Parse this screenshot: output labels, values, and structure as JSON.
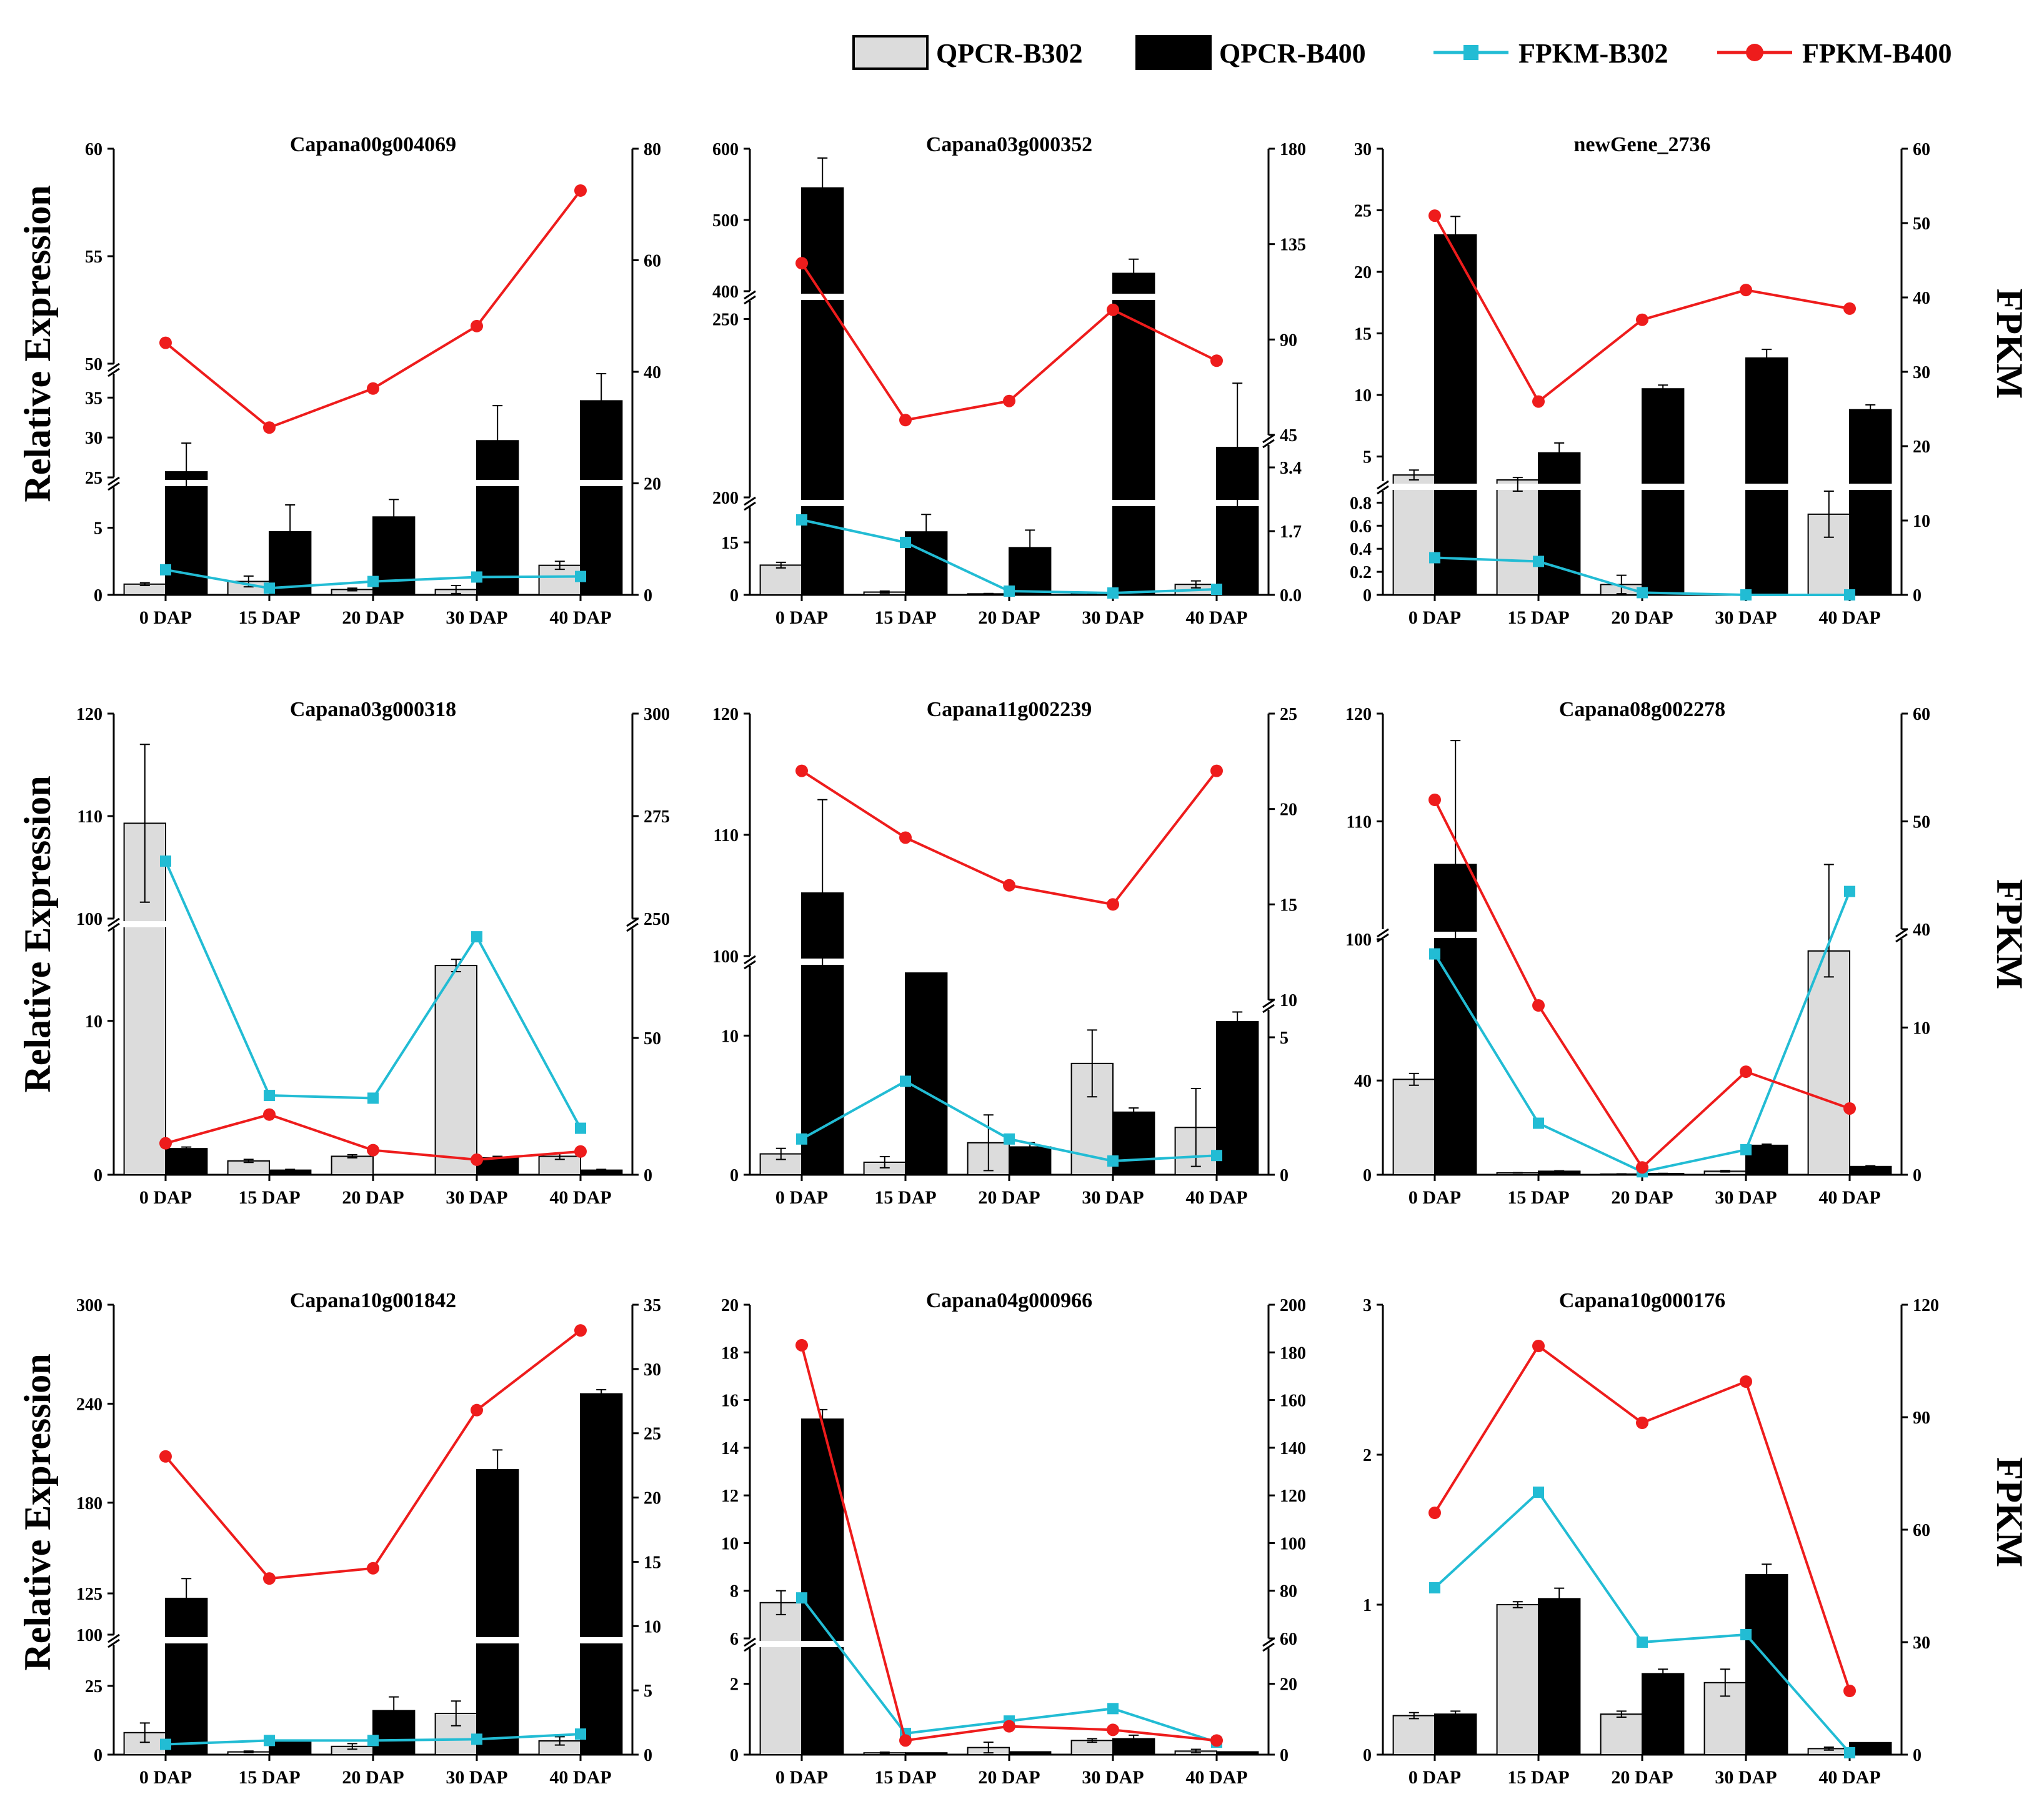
{
  "legend": {
    "items": [
      {
        "label": "QPCR-B302",
        "kind": "bar",
        "color": "#dcdcdc"
      },
      {
        "label": "QPCR-B400",
        "kind": "bar",
        "color": "#000000"
      },
      {
        "label": "FPKM-B302",
        "kind": "line",
        "color": "#22bcd4"
      },
      {
        "label": "FPKM-B400",
        "kind": "line",
        "color": "#ee1c1c"
      }
    ]
  },
  "axis_labels": {
    "left": "Relative Expression",
    "right": "FPKM"
  },
  "chart_data": [
    {
      "type": "bar+line",
      "title": "Capana00g004069",
      "categories": [
        "0 DAP",
        "15 DAP",
        "20 DAP",
        "30 DAP",
        "40 DAP"
      ],
      "left_axis": {
        "segments": [
          [
            0,
            8
          ],
          [
            25,
            38
          ],
          [
            50,
            60
          ]
        ],
        "ticks": [
          [
            0,
            5
          ],
          [
            25,
            30,
            35
          ],
          [
            50,
            55,
            60
          ]
        ]
      },
      "right_axis": {
        "segments": [
          [
            0,
            80
          ]
        ],
        "ticks": [
          [
            0,
            20,
            40,
            60,
            80
          ]
        ]
      },
      "qpcr_b302": [
        0.8,
        1.0,
        0.4,
        0.4,
        2.2
      ],
      "qpcr_b302_err": [
        0.1,
        0.4,
        0.1,
        0.3,
        0.3
      ],
      "qpcr_b400": [
        25.7,
        4.7,
        5.8,
        29.6,
        34.6
      ],
      "qpcr_b400_err": [
        3.6,
        2.0,
        1.3,
        4.4,
        3.9
      ],
      "fpkm_b302": [
        4.5,
        1.2,
        2.4,
        3.2,
        3.3
      ],
      "fpkm_b400": [
        45.2,
        30.0,
        37.0,
        48.2,
        72.5
      ]
    },
    {
      "type": "bar+line",
      "title": "Capana03g000352",
      "categories": [
        "0 DAP",
        "15 DAP",
        "20 DAP",
        "30 DAP",
        "40 DAP"
      ],
      "left_axis": {
        "segments": [
          [
            0,
            25
          ],
          [
            200,
            255
          ],
          [
            400,
            600
          ]
        ],
        "ticks": [
          [
            0,
            15
          ],
          [
            200,
            250
          ],
          [
            400,
            500,
            600
          ]
        ]
      },
      "right_axis": {
        "segments": [
          [
            0,
            4
          ],
          [
            45,
            180
          ]
        ],
        "ticks": [
          [
            0.0,
            1.7,
            3.4
          ],
          [
            45,
            90,
            135,
            180
          ]
        ]
      },
      "qpcr_b302": [
        8.5,
        0.8,
        0.3,
        0.4,
        3.0
      ],
      "qpcr_b302_err": [
        0.8,
        0.3,
        0.1,
        0.2,
        1.0
      ],
      "qpcr_b400": [
        545,
        18,
        13.5,
        425,
        214
      ],
      "qpcr_b400_err": [
        42,
        5,
        5,
        20,
        18
      ],
      "fpkm_b302": [
        2.0,
        1.4,
        0.1,
        0.05,
        0.15
      ],
      "fpkm_b400": [
        126,
        52,
        61,
        104,
        80
      ]
    },
    {
      "type": "bar+line",
      "title": "newGene_2736",
      "categories": [
        "0 DAP",
        "15 DAP",
        "20 DAP",
        "30 DAP",
        "40 DAP"
      ],
      "left_axis": {
        "segments": [
          [
            0,
            0.9
          ],
          [
            3,
            30
          ]
        ],
        "ticks": [
          [
            0.0,
            0.2,
            0.4,
            0.6,
            0.8
          ],
          [
            5,
            10,
            15,
            20,
            25,
            30
          ]
        ]
      },
      "right_axis": {
        "segments": [
          [
            0,
            60
          ]
        ],
        "ticks": [
          [
            0,
            10,
            20,
            30,
            40,
            50,
            60
          ]
        ]
      },
      "qpcr_b302": [
        3.5,
        3.1,
        0.09,
        0.0,
        0.7
      ],
      "qpcr_b302_err": [
        0.4,
        0.2,
        0.08,
        0.0,
        0.2
      ],
      "qpcr_b400": [
        23.0,
        5.3,
        10.5,
        13.0,
        8.8
      ],
      "qpcr_b400_err": [
        1.5,
        0.8,
        0.3,
        0.7,
        0.4
      ],
      "fpkm_b302": [
        5.0,
        4.5,
        0.3,
        0.0,
        0.0
      ],
      "fpkm_b400": [
        51,
        26,
        37,
        41,
        38.5
      ]
    },
    {
      "type": "bar+line",
      "title": "Capana03g000318",
      "categories": [
        "0 DAP",
        "15 DAP",
        "20 DAP",
        "30 DAP",
        "40 DAP"
      ],
      "left_axis": {
        "segments": [
          [
            0,
            16
          ],
          [
            100,
            120
          ]
        ],
        "ticks": [
          [
            0,
            10
          ],
          [
            100,
            110,
            120
          ]
        ]
      },
      "right_axis": {
        "segments": [
          [
            0,
            90
          ],
          [
            250,
            300
          ]
        ],
        "ticks": [
          [
            0,
            50
          ],
          [
            250,
            275,
            300
          ]
        ]
      },
      "qpcr_b302": [
        109.3,
        0.9,
        1.2,
        13.6,
        1.2
      ],
      "qpcr_b302_err": [
        7.7,
        0.1,
        0.1,
        0.4,
        0.2
      ],
      "qpcr_b400": [
        1.7,
        0.3,
        0.0,
        1.1,
        0.3
      ],
      "qpcr_b400_err": [
        0.1,
        0.05,
        0.0,
        0.1,
        0.05
      ],
      "fpkm_b302": [
        264,
        29,
        28,
        87,
        17
      ],
      "fpkm_b400": [
        11.5,
        22,
        9,
        5.5,
        8.5
      ]
    },
    {
      "type": "bar+line",
      "title": "Capana11g002239",
      "categories": [
        "0 DAP",
        "15 DAP",
        "20 DAP",
        "30 DAP",
        "40 DAP"
      ],
      "left_axis": {
        "segments": [
          [
            0,
            15
          ],
          [
            100,
            120
          ]
        ],
        "ticks": [
          [
            0,
            10
          ],
          [
            100,
            110,
            120
          ]
        ]
      },
      "right_axis": {
        "segments": [
          [
            0,
            6
          ],
          [
            10,
            25
          ]
        ],
        "ticks": [
          [
            0,
            5
          ],
          [
            10,
            15,
            20,
            25
          ]
        ]
      },
      "qpcr_b302": [
        1.5,
        0.9,
        2.3,
        8.0,
        3.4
      ],
      "qpcr_b302_err": [
        0.4,
        0.4,
        2.0,
        2.4,
        2.8
      ],
      "qpcr_b400": [
        105.2,
        14.5,
        2.0,
        4.5,
        11.0
      ],
      "qpcr_b400_err": [
        7.7,
        0.0,
        0.3,
        0.3,
        0.7
      ],
      "fpkm_b302": [
        1.3,
        3.4,
        1.3,
        0.5,
        0.7
      ],
      "fpkm_b400": [
        22.0,
        18.5,
        16.0,
        15.0,
        22.0
      ]
    },
    {
      "type": "bar+line",
      "title": "Capana08g002278",
      "categories": [
        "0 DAP",
        "15 DAP",
        "20 DAP",
        "30 DAP",
        "40 DAP"
      ],
      "left_axis": {
        "segments": [
          [
            0,
            100
          ],
          [
            100,
            120
          ]
        ],
        "ticks": [
          [
            0,
            40
          ],
          [
            100,
            110,
            120
          ]
        ]
      },
      "right_axis": {
        "segments": [
          [
            0,
            16
          ],
          [
            40,
            60
          ]
        ],
        "ticks": [
          [
            0,
            10
          ],
          [
            40,
            50,
            60
          ]
        ]
      },
      "qpcr_b302": [
        40.5,
        0.8,
        0.3,
        1.5,
        95.0
      ],
      "qpcr_b302_err": [
        2.5,
        0.1,
        0.1,
        0.3,
        11.0
      ],
      "qpcr_b400": [
        106.0,
        1.5,
        0.5,
        12.5,
        3.5
      ],
      "qpcr_b400_err": [
        11.5,
        0.2,
        0.1,
        0.5,
        0.3
      ],
      "fpkm_b302": [
        15.0,
        3.5,
        0.2,
        1.7,
        43.5
      ],
      "fpkm_b400": [
        52.0,
        11.5,
        0.5,
        7.0,
        4.5
      ]
    },
    {
      "type": "bar+line",
      "title": "Capana10g001842",
      "categories": [
        "0 DAP",
        "15 DAP",
        "20 DAP",
        "30 DAP",
        "40 DAP"
      ],
      "left_axis": {
        "segments": [
          [
            0,
            40
          ],
          [
            100,
            300
          ]
        ],
        "ticks": [
          [
            0,
            25
          ],
          [
            100,
            125,
            180,
            240,
            300
          ]
        ]
      },
      "right_axis": {
        "segments": [
          [
            0,
            35
          ]
        ],
        "ticks": [
          [
            0,
            5,
            10,
            15,
            20,
            25,
            30,
            35
          ]
        ]
      },
      "qpcr_b302": [
        8.0,
        1.0,
        3.0,
        15.0,
        5.0
      ],
      "qpcr_b302_err": [
        3.5,
        0.3,
        1.0,
        4.5,
        1.5
      ],
      "qpcr_b400": [
        122.0,
        5.0,
        16.0,
        200.0,
        246.0
      ],
      "qpcr_b400_err": [
        12.0,
        0.0,
        5.0,
        12.0,
        2.5
      ],
      "fpkm_b302": [
        0.8,
        1.1,
        1.1,
        1.2,
        1.6
      ],
      "fpkm_b400": [
        23.2,
        13.7,
        14.5,
        26.8,
        33.0
      ]
    },
    {
      "type": "bar+line",
      "title": "Capana04g000966",
      "categories": [
        "0 DAP",
        "15 DAP",
        "20 DAP",
        "30 DAP",
        "40 DAP"
      ],
      "left_axis": {
        "segments": [
          [
            0,
            3
          ],
          [
            6,
            20
          ]
        ],
        "ticks": [
          [
            0,
            2
          ],
          [
            6,
            8,
            10,
            12,
            14,
            16,
            18,
            20
          ]
        ]
      },
      "right_axis": {
        "segments": [
          [
            0,
            30
          ],
          [
            60,
            200
          ]
        ],
        "ticks": [
          [
            0,
            20
          ],
          [
            60,
            80,
            100,
            120,
            140,
            160,
            180,
            200
          ]
        ]
      },
      "qpcr_b302": [
        7.5,
        0.05,
        0.2,
        0.4,
        0.1
      ],
      "qpcr_b302_err": [
        0.5,
        0.02,
        0.15,
        0.05,
        0.05
      ],
      "qpcr_b400": [
        15.2,
        0.05,
        0.08,
        0.45,
        0.08
      ],
      "qpcr_b400_err": [
        0.4,
        0.0,
        0.0,
        0.1,
        0.0
      ],
      "fpkm_b302": [
        77,
        6,
        9.5,
        13,
        3.5
      ],
      "fpkm_b400": [
        183,
        4,
        8,
        7,
        4
      ]
    },
    {
      "type": "bar+line",
      "title": "Capana10g000176",
      "categories": [
        "0 DAP",
        "15 DAP",
        "20 DAP",
        "30 DAP",
        "40 DAP"
      ],
      "left_axis": {
        "segments": [
          [
            0,
            3
          ]
        ],
        "ticks": [
          [
            0,
            1,
            2,
            3
          ]
        ]
      },
      "right_axis": {
        "segments": [
          [
            0,
            120
          ]
        ],
        "ticks": [
          [
            0,
            30,
            60,
            90,
            120
          ]
        ]
      },
      "qpcr_b302": [
        0.26,
        1.0,
        0.27,
        0.48,
        0.04
      ],
      "qpcr_b302_err": [
        0.02,
        0.02,
        0.02,
        0.09,
        0.01
      ],
      "qpcr_b400": [
        0.27,
        1.04,
        0.54,
        1.2,
        0.08
      ],
      "qpcr_b400_err": [
        0.02,
        0.07,
        0.03,
        0.07,
        0.0
      ],
      "fpkm_b302": [
        44.5,
        70,
        30,
        32,
        0.5
      ],
      "fpkm_b400": [
        64.5,
        109,
        88.5,
        99.5,
        17
      ]
    }
  ]
}
